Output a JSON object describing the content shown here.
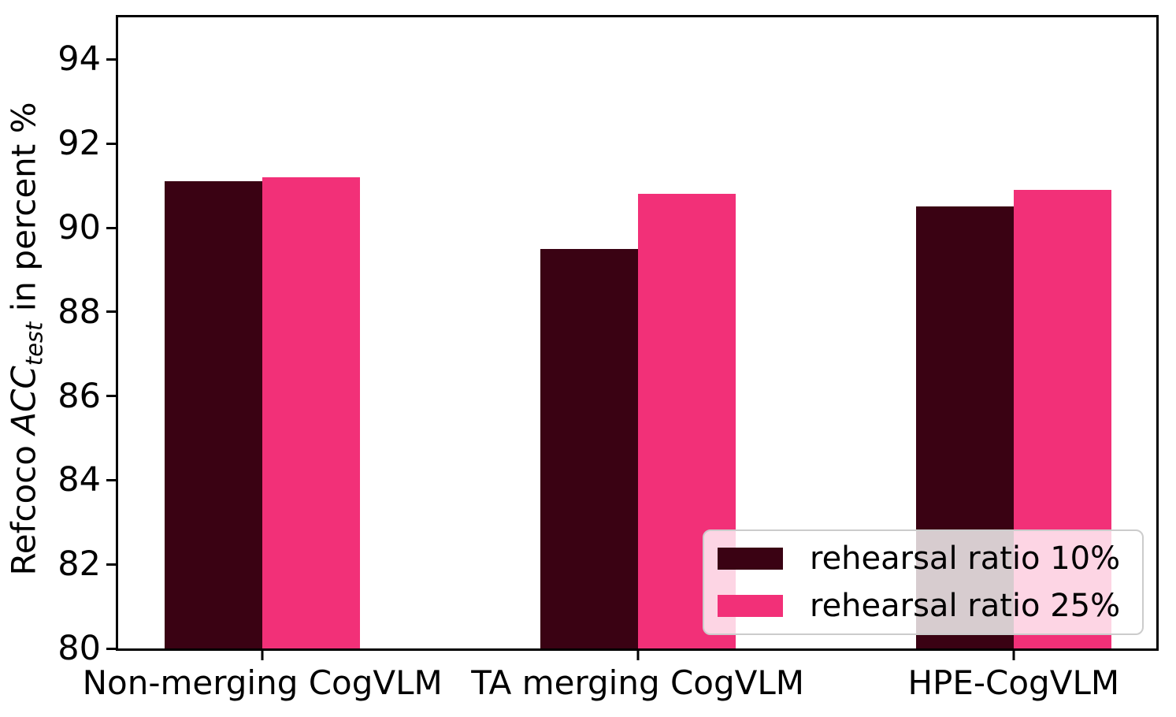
{
  "chart_data": {
    "type": "bar",
    "title": "",
    "categories": [
      "Non-merging CogVLM",
      "TA merging CogVLM",
      "HPE-CogVLM"
    ],
    "series": [
      {
        "name": "rehearsal ratio 10%",
        "color": "#3a0213",
        "values": [
          91.1,
          89.5,
          90.5
        ]
      },
      {
        "name": "rehearsal ratio 25%",
        "color": "#f23078",
        "values": [
          91.2,
          90.8,
          90.9
        ]
      }
    ],
    "ylabel": {
      "prefix": "Refcoco ",
      "italic": "ACC",
      "sub": "test",
      "suffix": " in percent %"
    },
    "xlabel": "",
    "ylim": [
      80,
      95
    ],
    "yticks": [
      80,
      82,
      84,
      86,
      88,
      90,
      92,
      94
    ],
    "grid": false,
    "legend_position": "lower right"
  },
  "colors": {
    "axis": "#000000",
    "background": "#ffffff",
    "legend_border": "#cccccc",
    "legend_background": "rgba(255,255,255,0.8)"
  }
}
